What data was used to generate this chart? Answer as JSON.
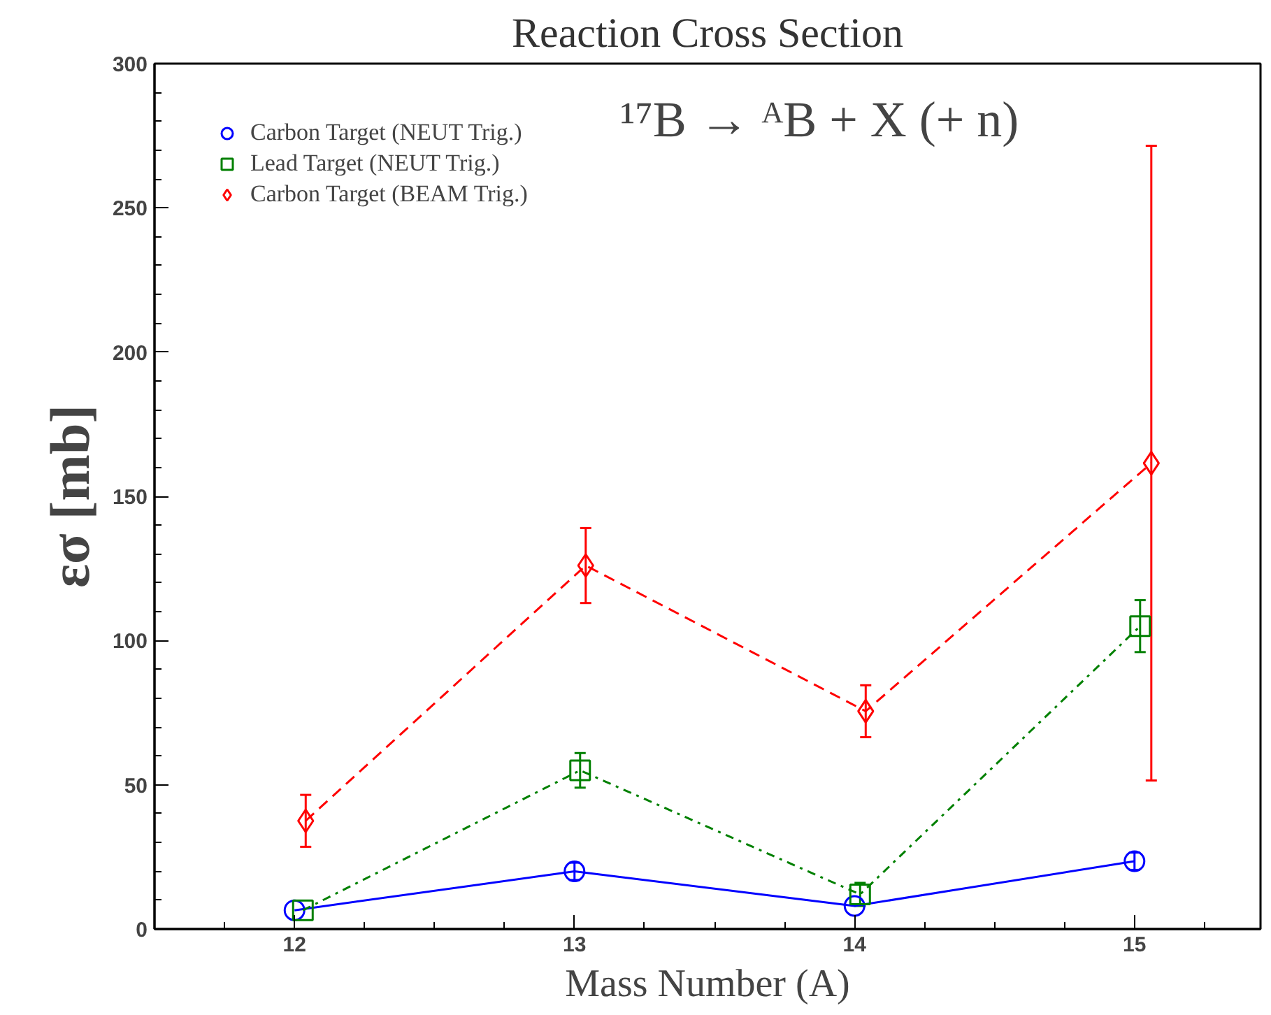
{
  "chart_data": {
    "type": "line",
    "title": "Reaction Cross Section",
    "xlabel": "Mass Number (A)",
    "ylabel": "εσ [mb]",
    "annotations": [
      "¹⁷B → ᴬB + X (+ n)"
    ],
    "xlim": [
      11.5,
      15.45
    ],
    "xticks": [
      12,
      13,
      14,
      15
    ],
    "ylim": [
      0,
      300
    ],
    "yticks": [
      0,
      50,
      100,
      150,
      200,
      250,
      300
    ],
    "grid": false,
    "legend": "top left",
    "series": [
      {
        "name": "Carbon Target (NEUT Trig.)",
        "marker": "circle",
        "line_style": "solid",
        "color": "#0000ff",
        "x": [
          12,
          13,
          14,
          15
        ],
        "values": [
          6.5,
          20,
          8,
          23.5
        ],
        "errors": [
          null,
          3,
          null,
          3
        ]
      },
      {
        "name": "Lead Target (NEUT Trig.)",
        "marker": "square",
        "line_style": "dashdot",
        "color": "#008000",
        "x": [
          12.03,
          13.02,
          14.02,
          15.02
        ],
        "values": [
          6.5,
          55,
          12,
          105
        ],
        "errors": [
          null,
          6,
          4,
          9
        ]
      },
      {
        "name": "Carbon Target (BEAM Trig.)",
        "marker": "diamond",
        "line_style": "dashed",
        "color": "#ff0000",
        "x": [
          12.04,
          13.04,
          14.04,
          15.06
        ],
        "values": [
          37.5,
          126,
          75.5,
          161.5
        ],
        "errors": [
          9,
          13,
          9,
          110
        ]
      }
    ]
  }
}
